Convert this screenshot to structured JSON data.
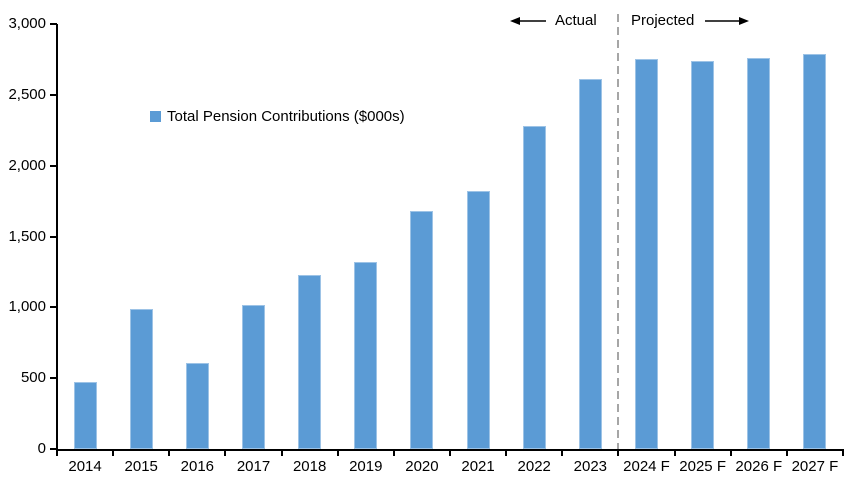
{
  "chart_data": {
    "type": "bar",
    "title": "",
    "legend": {
      "label": "Total Pension Contributions ($000s)",
      "marker_color": "#5B9BD5",
      "position": "inside-upper-left"
    },
    "categories": [
      "2014",
      "2015",
      "2016",
      "2017",
      "2018",
      "2019",
      "2020",
      "2021",
      "2022",
      "2023",
      "2024 F",
      "2025 F",
      "2026 F",
      "2027 F"
    ],
    "values": [
      470,
      990,
      610,
      1020,
      1230,
      1320,
      1680,
      1820,
      2280,
      2610,
      2750,
      2740,
      2760,
      2790
    ],
    "xlabel": "",
    "ylabel": "",
    "ylim": [
      0,
      3000
    ],
    "yticks": [
      0,
      500,
      1000,
      1500,
      2000,
      2500,
      3000
    ],
    "ytick_labels": [
      "0",
      "500",
      "1,000",
      "1,500",
      "2,000",
      "2,500",
      "3,000"
    ],
    "grid": false,
    "bar_color": "#5B9BD5",
    "bar_border_color": "#9DC3E6",
    "axis_color": "#000000",
    "annotations": {
      "actual_label": "Actual",
      "projected_label": "Projected",
      "divider_between": [
        "2023",
        "2024 F"
      ],
      "divider_color": "#A6A6A6",
      "arrow_color": "#000000"
    }
  }
}
